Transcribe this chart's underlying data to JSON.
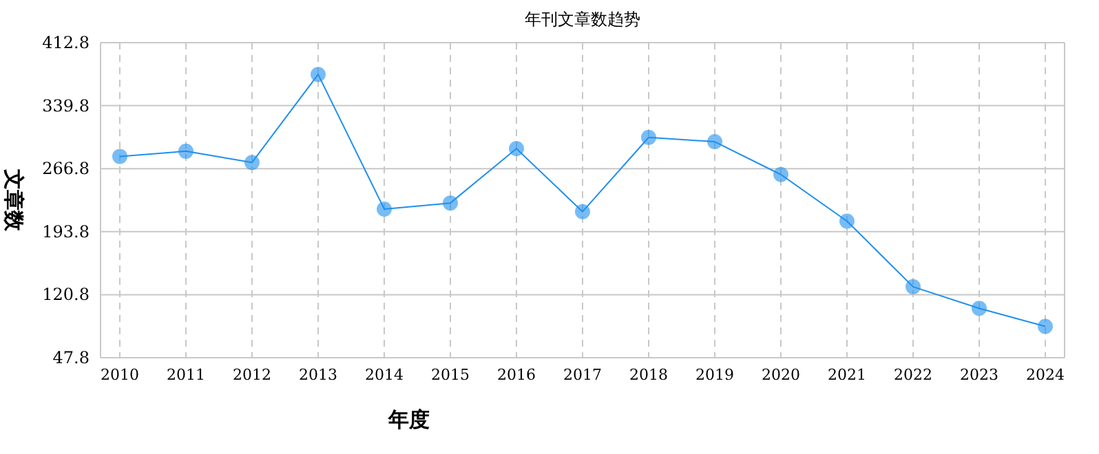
{
  "chart_data": {
    "type": "line",
    "title": "年刊文章数趋势",
    "xlabel": "年度",
    "ylabel": "文章数",
    "categories": [
      "2010",
      "2011",
      "2012",
      "2013",
      "2014",
      "2015",
      "2016",
      "2017",
      "2018",
      "2019",
      "2020",
      "2021",
      "2022",
      "2023",
      "2024"
    ],
    "series": [
      {
        "color": "#1e8fef",
        "values": [
          281,
          287,
          274,
          376,
          220,
          227,
          290,
          217,
          303,
          298,
          260,
          206,
          130,
          105,
          84
        ]
      }
    ],
    "ylim": [
      47.8,
      412.8
    ],
    "yticks": [
      47.8,
      120.8,
      193.8,
      266.8,
      339.8,
      412.8
    ],
    "grid": true,
    "marker": "circle",
    "line_style": "solid"
  }
}
